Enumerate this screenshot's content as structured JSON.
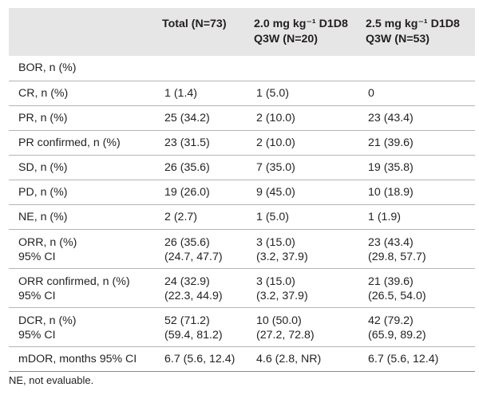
{
  "header": {
    "col1": "",
    "col2": "Total (N=73)",
    "col3_line1": "2.0 mg kg⁻¹ D1D8",
    "col3_line2": "Q3W (N=20)",
    "col4_line1": "2.5 mg kg⁻¹ D1D8",
    "col4_line2": "Q3W (N=53)"
  },
  "rows": [
    {
      "label": [
        "BOR, n (%)"
      ],
      "total": [
        ""
      ],
      "dose20": [
        ""
      ],
      "dose25": [
        ""
      ]
    },
    {
      "label": [
        "CR, n (%)"
      ],
      "total": [
        "1 (1.4)"
      ],
      "dose20": [
        "1 (5.0)"
      ],
      "dose25": [
        "0"
      ]
    },
    {
      "label": [
        "PR, n (%)"
      ],
      "total": [
        "25 (34.2)"
      ],
      "dose20": [
        "2 (10.0)"
      ],
      "dose25": [
        "23 (43.4)"
      ]
    },
    {
      "label": [
        "PR confirmed, n (%)"
      ],
      "total": [
        "23 (31.5)"
      ],
      "dose20": [
        "2 (10.0)"
      ],
      "dose25": [
        "21 (39.6)"
      ]
    },
    {
      "label": [
        "SD, n (%)"
      ],
      "total": [
        "26 (35.6)"
      ],
      "dose20": [
        "7 (35.0)"
      ],
      "dose25": [
        "19 (35.8)"
      ]
    },
    {
      "label": [
        "PD, n (%)"
      ],
      "total": [
        "19 (26.0)"
      ],
      "dose20": [
        "9 (45.0)"
      ],
      "dose25": [
        "10 (18.9)"
      ]
    },
    {
      "label": [
        "NE, n (%)"
      ],
      "total": [
        "2 (2.7)"
      ],
      "dose20": [
        "1 (5.0)"
      ],
      "dose25": [
        "1 (1.9)"
      ]
    },
    {
      "label": [
        "ORR, n (%)",
        "95% CI"
      ],
      "total": [
        "26 (35.6)",
        "(24.7, 47.7)"
      ],
      "dose20": [
        "3 (15.0)",
        "(3.2, 37.9)"
      ],
      "dose25": [
        "23 (43.4)",
        "(29.8, 57.7)"
      ]
    },
    {
      "label": [
        "ORR confirmed, n (%)",
        "95% CI"
      ],
      "total": [
        "24 (32.9)",
        "(22.3, 44.9)"
      ],
      "dose20": [
        "3 (15.0)",
        "(3.2, 37.9)"
      ],
      "dose25": [
        "21 (39.6)",
        "(26.5, 54.0)"
      ]
    },
    {
      "label": [
        "DCR, n (%)",
        "95% CI"
      ],
      "total": [
        "52 (71.2)",
        "(59.4, 81.2)"
      ],
      "dose20": [
        "10 (50.0)",
        "(27.2, 72.8)"
      ],
      "dose25": [
        "42 (79.2)",
        "(65.9, 89.2)"
      ]
    },
    {
      "label": [
        "mDOR, months 95% CI"
      ],
      "total": [
        "6.7 (5.6, 12.4)"
      ],
      "dose20": [
        "4.6 (2.8, NR)"
      ],
      "dose25": [
        "6.7 (5.6, 12.4)"
      ]
    }
  ],
  "footnote": "NE, not evaluable."
}
